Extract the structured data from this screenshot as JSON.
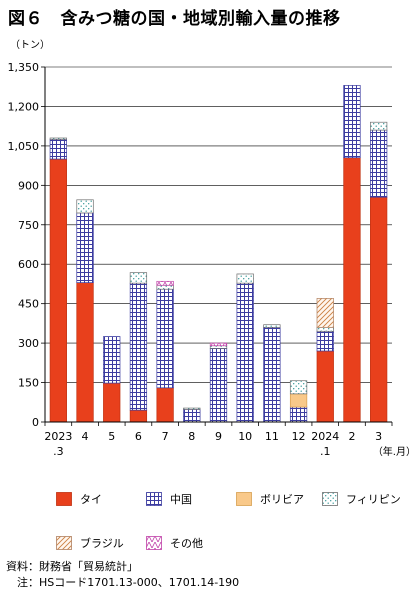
{
  "title": "図６　含みつ糖の国・地域別輸入量の推移",
  "colors": {
    "thai": "#e8401c",
    "china": "#4a4aa8",
    "bolivia": "#f9c98a",
    "philippines": "#4aa0a0",
    "brazil": "#d08a50",
    "other": "#c050b0",
    "axis": "#000000"
  },
  "chart_data": {
    "type": "bar",
    "stacked": true,
    "ylabel": "（トン）",
    "xlabel": "（年.月）",
    "ylim": [
      0,
      1350
    ],
    "yticks": [
      "0",
      "150",
      "300",
      "450",
      "600",
      "750",
      "900",
      "1,050",
      "1,200",
      "1,350"
    ],
    "ytick_values": [
      0,
      150,
      300,
      450,
      600,
      750,
      900,
      1050,
      1200,
      1350
    ],
    "categories": [
      "2023",
      "4",
      "5",
      "6",
      "7",
      "8",
      "9",
      "10",
      "11",
      "12",
      "2024",
      "2",
      "3"
    ],
    "category_sublabels": [
      ".3",
      "",
      "",
      "",
      "",
      "",
      "",
      "",
      "",
      "",
      ".1",
      "",
      ""
    ],
    "legend_position": "bottom",
    "series": [
      {
        "name": "タイ",
        "key": "thai",
        "values": [
          1000,
          530,
          148,
          45,
          130,
          0,
          0,
          0,
          0,
          0,
          270,
          1005,
          855
        ]
      },
      {
        "name": "中国",
        "key": "china",
        "values": [
          75,
          265,
          177,
          483,
          375,
          48,
          280,
          528,
          360,
          57,
          75,
          275,
          255
        ]
      },
      {
        "name": "ボリビア",
        "key": "bolivia",
        "values": [
          0,
          0,
          0,
          0,
          0,
          0,
          0,
          0,
          0,
          50,
          0,
          0,
          0
        ]
      },
      {
        "name": "フィリピン",
        "key": "philippines",
        "values": [
          5,
          50,
          0,
          40,
          15,
          5,
          10,
          35,
          10,
          50,
          15,
          0,
          30
        ]
      },
      {
        "name": "ブラジル",
        "key": "brazil",
        "values": [
          0,
          0,
          0,
          0,
          0,
          0,
          0,
          0,
          0,
          0,
          110,
          0,
          0
        ]
      },
      {
        "name": "その他",
        "key": "other",
        "values": [
          0,
          0,
          0,
          0,
          15,
          0,
          10,
          0,
          0,
          0,
          0,
          0,
          0
        ]
      }
    ]
  },
  "legend": {
    "row1": [
      {
        "label": "タイ",
        "key": "thai"
      },
      {
        "label": "中国",
        "key": "china"
      },
      {
        "label": "ボリビア",
        "key": "bolivia"
      },
      {
        "label": "フィリピン",
        "key": "philippines"
      }
    ],
    "row2": [
      {
        "label": "ブラジル",
        "key": "brazil"
      },
      {
        "label": "その他",
        "key": "other"
      }
    ]
  },
  "source": {
    "line1": "資料：財務省「貿易統計」",
    "line2": "　注：HSコード1701.13-000、1701.14-190"
  }
}
